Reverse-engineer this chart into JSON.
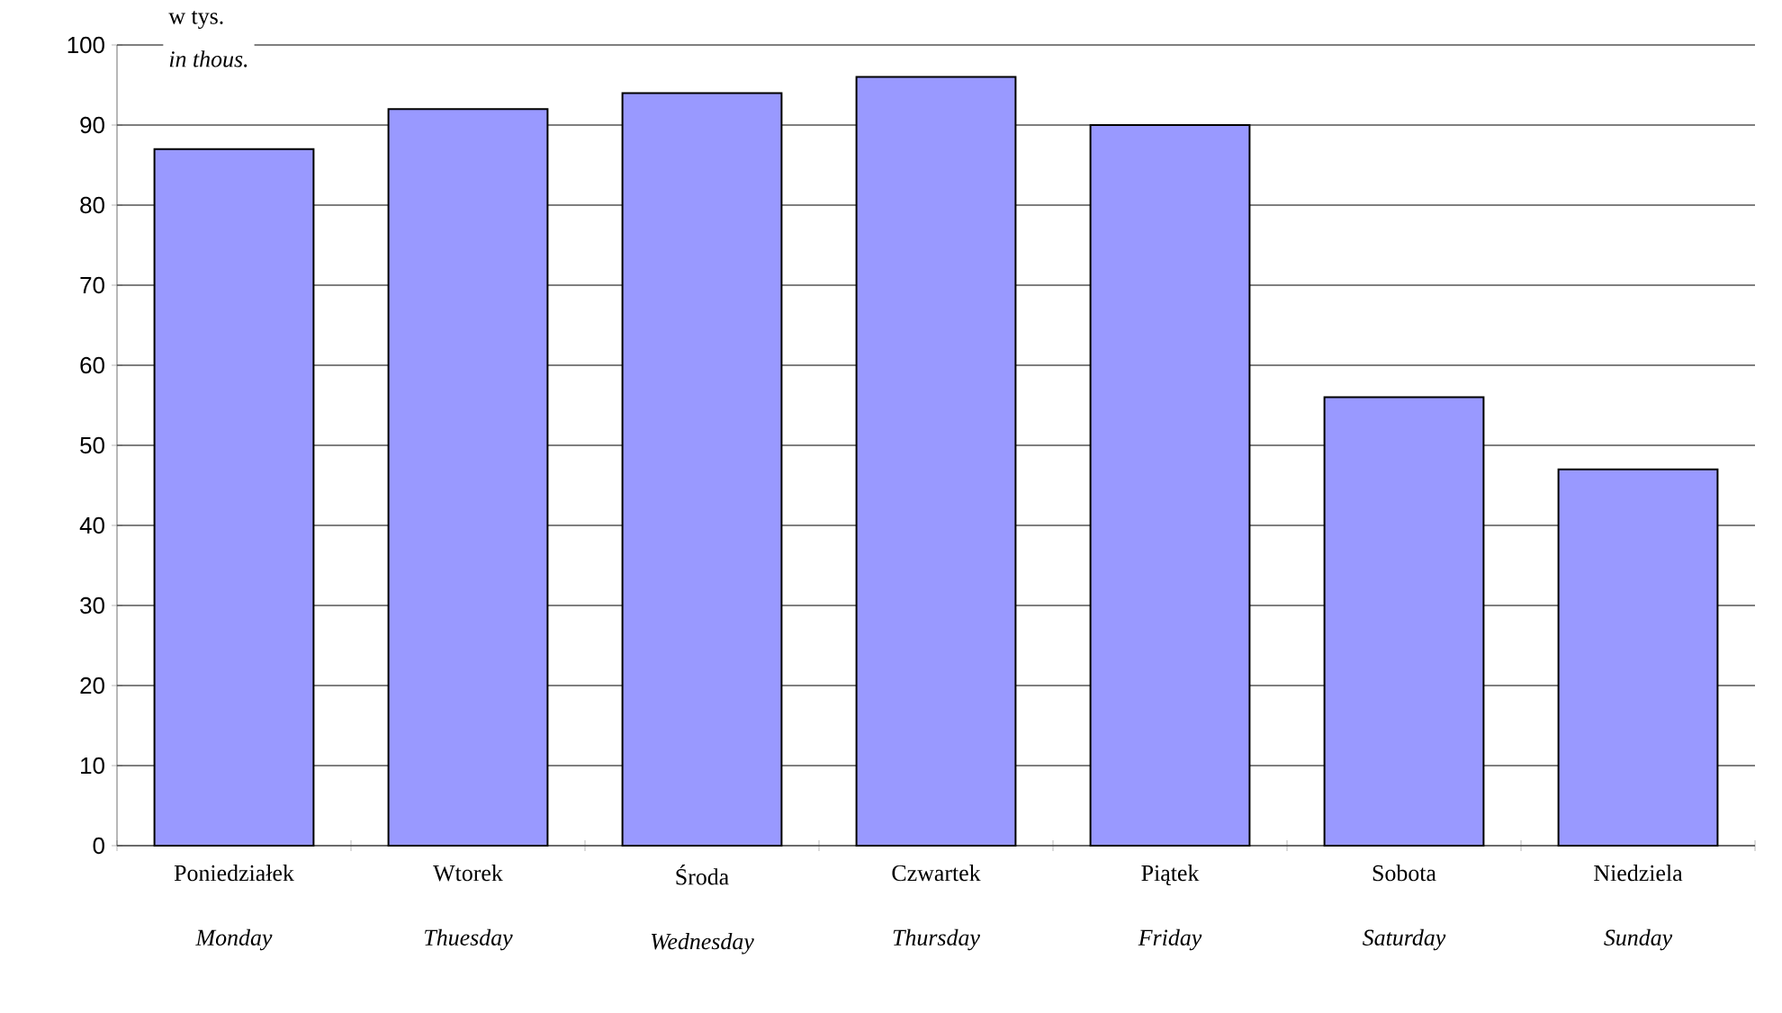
{
  "chart_data": {
    "type": "bar",
    "ylabel": "w tys.",
    "annotations": [
      "*in thous.*"
    ],
    "categories": [
      "Poniedziałek *Monday*",
      "Wtorek *Thuesday*",
      "Środa *Wednesday*",
      "Czwartek *Thursday*",
      "Piątek *Friday*",
      "Sobota *Saturday*",
      "Niedziela *Sunday*"
    ],
    "values": [
      87,
      92,
      94,
      96,
      90,
      56,
      47
    ],
    "color": "#9999ff",
    "ylim": [
      0,
      100
    ],
    "yticks": [
      0,
      10,
      20,
      30,
      40,
      50,
      60,
      70,
      80,
      90,
      100
    ],
    "grid": "y"
  }
}
